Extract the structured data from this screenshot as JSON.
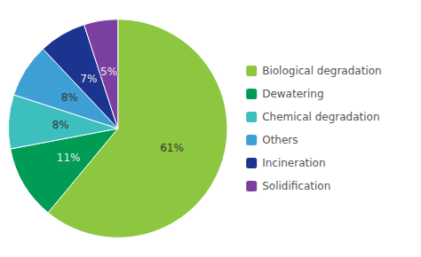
{
  "chart_data": {
    "type": "pie",
    "categories": [
      "Biological degradation",
      "Dewatering",
      "Chemical degradation",
      "Others",
      "Incineration",
      "Solidification"
    ],
    "values": [
      61,
      11,
      8,
      8,
      7,
      5
    ],
    "value_labels": [
      "61%",
      "11%",
      "8%",
      "8%",
      "7%",
      "5%"
    ],
    "colors": [
      "#8dc63f",
      "#009b55",
      "#3dbfbf",
      "#3d9fd3",
      "#1a3490",
      "#7b3fa0"
    ],
    "data_labels": true,
    "legend": "right"
  }
}
